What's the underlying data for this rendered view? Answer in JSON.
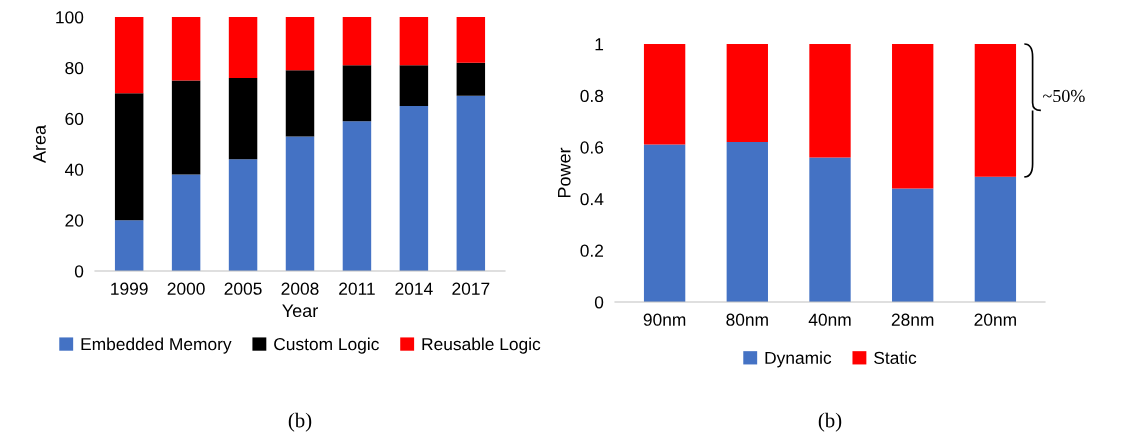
{
  "chart_data": [
    {
      "type": "bar",
      "stacked": true,
      "xlabel": "Year",
      "ylabel": "Area",
      "categories": [
        "1999",
        "2000",
        "2005",
        "2008",
        "2011",
        "2014",
        "2017"
      ],
      "series": [
        {
          "name": "Embedded Memory",
          "color": "#4472c4",
          "values": [
            20,
            38,
            44,
            53,
            59,
            65,
            69
          ]
        },
        {
          "name": "Custom Logic",
          "color": "#000000",
          "values": [
            50,
            37,
            32,
            26,
            22,
            16,
            13
          ]
        },
        {
          "name": "Reusable Logic",
          "color": "#ff0000",
          "values": [
            30,
            25,
            24,
            21,
            19,
            19,
            18
          ]
        }
      ],
      "ylim": [
        0,
        100
      ],
      "yticks": [
        0,
        20,
        40,
        60,
        80,
        100
      ],
      "grid": false,
      "legend": "bottom",
      "annotations": [
        "(b)"
      ]
    },
    {
      "type": "bar",
      "stacked": true,
      "ylabel": "Power",
      "categories": [
        "90nm",
        "80nm",
        "40nm",
        "28nm",
        "20nm"
      ],
      "series": [
        {
          "name": "Dynamic",
          "color": "#4472c4",
          "values": [
            0.61,
            0.62,
            0.56,
            0.44,
            0.485
          ]
        },
        {
          "name": "Static",
          "color": "#ff0000",
          "values": [
            0.39,
            0.38,
            0.44,
            0.56,
            0.515
          ]
        }
      ],
      "ylim": [
        0,
        1
      ],
      "yticks": [
        0,
        0.2,
        0.4,
        0.6,
        0.8,
        1
      ],
      "grid": false,
      "legend": "bottom",
      "annotations": [
        "~50%",
        "(b)"
      ]
    }
  ]
}
